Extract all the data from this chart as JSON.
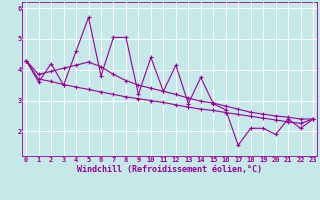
{
  "background_color": "#c5e8e8",
  "line_color": "#990099",
  "grid_color": "#aed4d4",
  "xlabel": "Windchill (Refroidissement éolien,°C)",
  "x_data": [
    0,
    1,
    2,
    3,
    4,
    5,
    6,
    7,
    8,
    9,
    10,
    11,
    12,
    13,
    14,
    15,
    16,
    17,
    18,
    19,
    20,
    21,
    22,
    23
  ],
  "y_jagged": [
    4.3,
    3.6,
    4.2,
    3.5,
    4.6,
    5.7,
    3.8,
    5.05,
    5.05,
    3.2,
    4.4,
    3.3,
    4.15,
    2.9,
    3.75,
    2.9,
    2.7,
    1.55,
    2.1,
    2.1,
    1.9,
    2.4,
    2.1,
    2.4
  ],
  "y_upper": [
    4.3,
    3.85,
    3.95,
    4.05,
    4.15,
    4.25,
    4.1,
    3.85,
    3.65,
    3.5,
    3.4,
    3.3,
    3.2,
    3.08,
    2.98,
    2.92,
    2.82,
    2.72,
    2.62,
    2.56,
    2.5,
    2.46,
    2.4,
    2.4
  ],
  "y_lower": [
    4.3,
    3.7,
    3.62,
    3.52,
    3.44,
    3.36,
    3.28,
    3.2,
    3.12,
    3.06,
    3.0,
    2.94,
    2.86,
    2.79,
    2.72,
    2.68,
    2.61,
    2.55,
    2.49,
    2.43,
    2.37,
    2.31,
    2.26,
    2.4
  ],
  "ylim_min": 1.2,
  "ylim_max": 6.2,
  "xlim_min": -0.3,
  "xlim_max": 23.3,
  "yticks": [
    2,
    3,
    4,
    5,
    6
  ],
  "xticks": [
    0,
    1,
    2,
    3,
    4,
    5,
    6,
    7,
    8,
    9,
    10,
    11,
    12,
    13,
    14,
    15,
    16,
    17,
    18,
    19,
    20,
    21,
    22,
    23
  ],
  "tick_fontsize": 5.0,
  "xlabel_fontsize": 6.0,
  "lw": 0.8,
  "marker_size": 2.8,
  "marker_lw": 0.8
}
